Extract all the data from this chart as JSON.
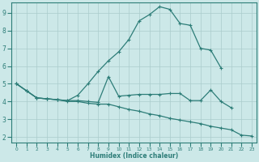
{
  "xlabel": "Humidex (Indice chaleur)",
  "background_color": "#cce8e8",
  "grid_color": "#aacccc",
  "line_color": "#2d7d78",
  "xlim": [
    -0.5,
    23.5
  ],
  "ylim": [
    1.7,
    9.6
  ],
  "xticks": [
    0,
    1,
    2,
    3,
    4,
    5,
    6,
    7,
    8,
    9,
    10,
    11,
    12,
    13,
    14,
    15,
    16,
    17,
    18,
    19,
    20,
    21,
    22,
    23
  ],
  "yticks": [
    2,
    3,
    4,
    5,
    6,
    7,
    8,
    9
  ],
  "lines": [
    {
      "x": [
        0,
        1,
        2,
        3,
        4,
        5,
        6,
        7,
        8,
        9,
        10,
        11,
        12,
        13,
        14,
        15,
        16,
        17,
        18,
        19,
        20
      ],
      "y": [
        5.0,
        4.6,
        4.2,
        4.15,
        4.1,
        4.05,
        4.35,
        5.0,
        5.7,
        6.3,
        6.8,
        7.5,
        8.55,
        8.9,
        9.35,
        9.2,
        8.4,
        8.3,
        7.0,
        6.9,
        5.9
      ]
    },
    {
      "x": [
        0,
        1,
        2,
        3,
        4,
        5,
        6,
        7,
        8,
        9,
        10,
        11,
        12,
        13,
        14,
        15,
        16,
        17,
        18,
        19,
        20,
        21
      ],
      "y": [
        5.0,
        4.6,
        4.2,
        4.15,
        4.1,
        4.05,
        4.05,
        4.0,
        3.95,
        5.4,
        4.3,
        4.35,
        4.4,
        4.4,
        4.4,
        4.45,
        4.45,
        4.05,
        4.05,
        4.65,
        4.0,
        3.65
      ]
    },
    {
      "x": [
        0,
        1,
        2,
        3,
        4,
        5,
        6,
        7,
        8,
        9,
        10,
        11,
        12,
        13,
        14,
        15,
        16,
        17,
        18,
        19,
        20,
        21,
        22,
        23
      ],
      "y": [
        5.0,
        4.6,
        4.2,
        4.15,
        4.1,
        4.0,
        4.0,
        3.9,
        3.85,
        3.85,
        3.7,
        3.55,
        3.45,
        3.3,
        3.2,
        3.05,
        2.95,
        2.85,
        2.75,
        2.6,
        2.5,
        2.4,
        2.1,
        2.05
      ]
    }
  ]
}
